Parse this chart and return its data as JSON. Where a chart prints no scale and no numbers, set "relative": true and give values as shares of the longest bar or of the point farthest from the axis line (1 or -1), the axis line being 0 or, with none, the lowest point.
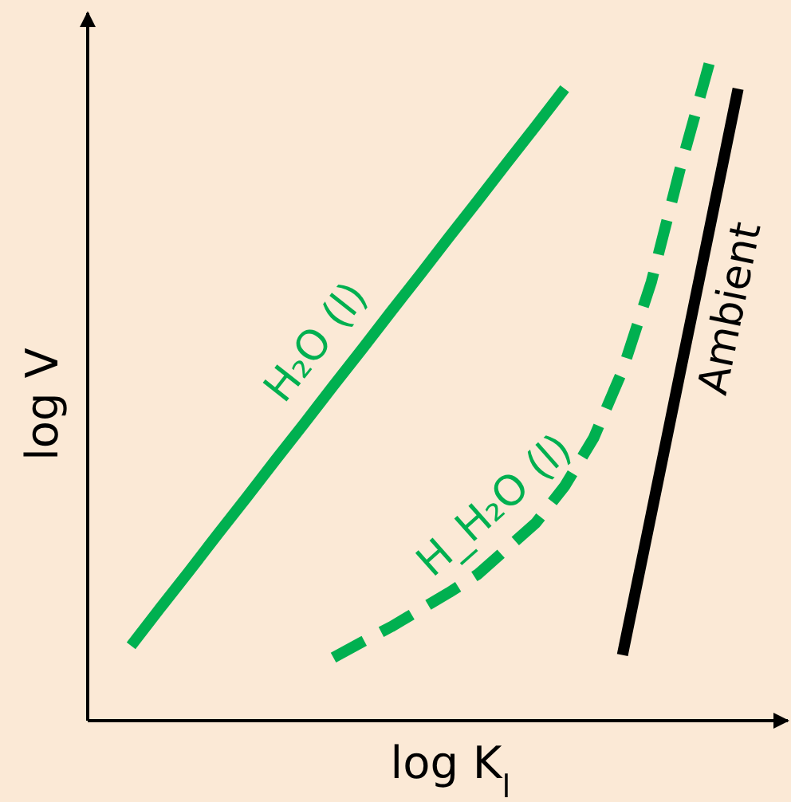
{
  "chart_data": {
    "type": "line",
    "relative": true,
    "xlabel": "log K$_{l}$",
    "ylabel": "log V",
    "categories": [
      null,
      null,
      null,
      null,
      null,
      null,
      null,
      null,
      null,
      null,
      null,
      null,
      null,
      null,
      null,
      null,
      null,
      null,
      null,
      null,
      null,
      null,
      null,
      null
    ],
    "series": [
      {
        "name": "H₂O (l)",
        "color": "#00b050",
        "line_style": "solid",
        "values": [
          null,
          0.114,
          0.171,
          0.227,
          0.284,
          0.34,
          0.397,
          0.453,
          0.51,
          0.566,
          0.623,
          0.679,
          0.736,
          0.792,
          0.849,
          0.905,
          0.962,
          null,
          null,
          null,
          null,
          null,
          null,
          null
        ]
      },
      {
        "name": "H_H₂O (l)",
        "color": "#00b050",
        "line_style": "dashed",
        "values": [
          null,
          null,
          null,
          null,
          null,
          null,
          null,
          null,
          0.096,
          0.12,
          0.143,
          0.169,
          0.195,
          0.223,
          0.262,
          0.301,
          0.357,
          0.43,
          0.533,
          0.668,
          0.841,
          1.0,
          null,
          null
        ]
      },
      {
        "name": "Ambient",
        "color": "#000000",
        "line_style": "solid",
        "values": [
          null,
          null,
          null,
          null,
          null,
          null,
          null,
          null,
          null,
          null,
          null,
          null,
          null,
          null,
          null,
          null,
          null,
          null,
          0.1,
          0.315,
          0.531,
          0.746,
          0.962,
          null
        ]
      }
    ]
  }
}
